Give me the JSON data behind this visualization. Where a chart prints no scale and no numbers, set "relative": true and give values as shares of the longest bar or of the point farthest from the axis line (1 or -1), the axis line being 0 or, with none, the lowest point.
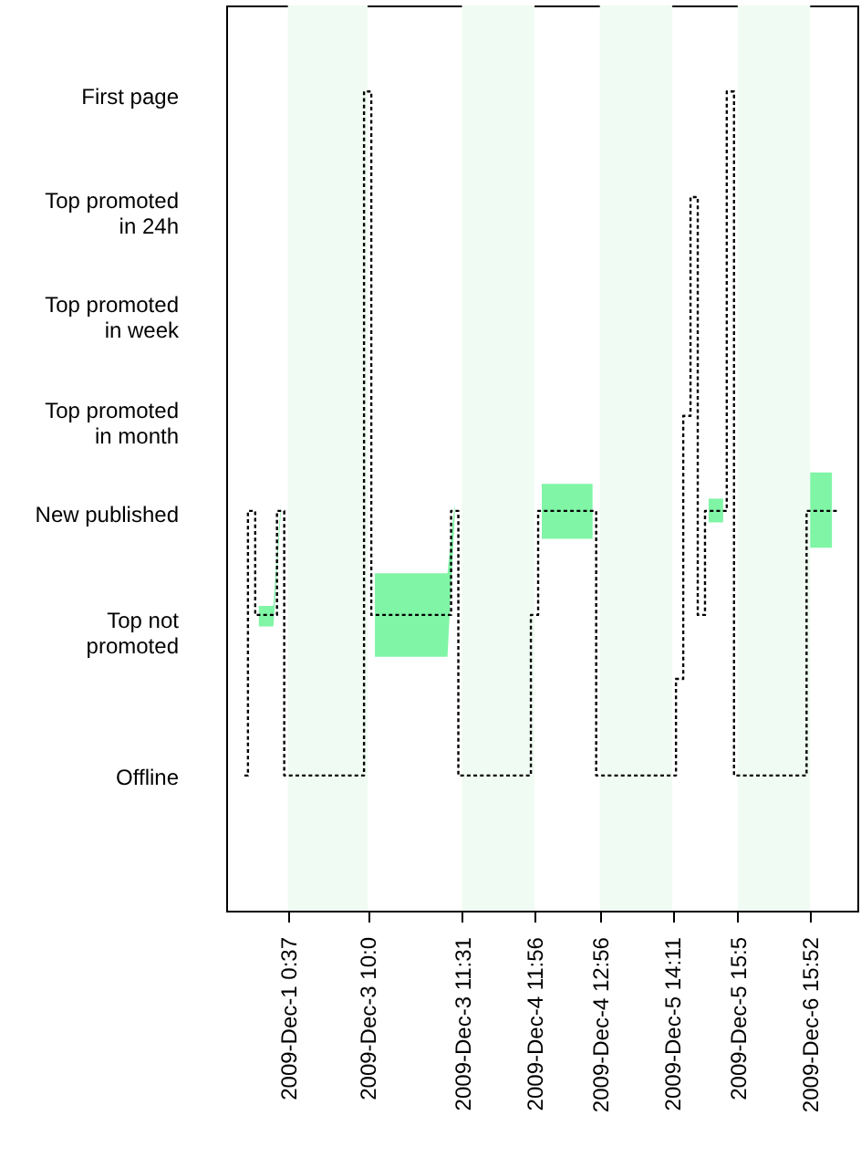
{
  "chart_data": {
    "type": "step",
    "line_style": "dotted",
    "relative": true,
    "categories": [
      null,
      null,
      null,
      null,
      null,
      null,
      null,
      null,
      "2009-Dec-1  0:37",
      null,
      null,
      null,
      null,
      null,
      null,
      null,
      null,
      null,
      null,
      "2009-Dec-3 10:0",
      null,
      null,
      null,
      null,
      null,
      null,
      null,
      null,
      null,
      null,
      null,
      null,
      "2009-Dec-3 11:31",
      null,
      null,
      null,
      null,
      null,
      null,
      null,
      null,
      null,
      "2009-Dec-4 11:56",
      null,
      null,
      null,
      null,
      null,
      null,
      null,
      null,
      "2009-Dec-4 12:56",
      null,
      null,
      null,
      null,
      null,
      null,
      null,
      null,
      null,
      "2009-Dec-5 14:11",
      null,
      null,
      null,
      null,
      null,
      null,
      null,
      null,
      "2009-Dec-5 15:5",
      null,
      null,
      null,
      null,
      null,
      null,
      null,
      null,
      null,
      "2009-Dec-6 15:52",
      null,
      null,
      null,
      null,
      null,
      null
    ],
    "series": [
      {
        "color": "#000000",
        "values": [
          null,
          null,
          0.165,
          0.488,
          0.361,
          0.361,
          0.361,
          0.488,
          0.165,
          0.165,
          0.165,
          0.165,
          0.165,
          0.165,
          0.165,
          0.165,
          0.165,
          0.165,
          0.165,
          1,
          0.361,
          0.361,
          0.361,
          0.361,
          0.361,
          0.361,
          0.361,
          0.361,
          0.361,
          0.361,
          0.361,
          0.488,
          0.165,
          0.165,
          0.165,
          0.165,
          0.165,
          0.165,
          0.165,
          0.165,
          0.165,
          0.165,
          0.361,
          0.488,
          0.488,
          0.488,
          0.488,
          0.488,
          0.488,
          0.488,
          0.488,
          0.165,
          0.165,
          0.165,
          0.165,
          0.165,
          0.165,
          0.165,
          0.165,
          0.165,
          0.165,
          0.165,
          0.283,
          0.604,
          0.871,
          0.361,
          0.488,
          0.488,
          0.488,
          1,
          0.165,
          0.165,
          0.165,
          0.165,
          0.165,
          0.165,
          0.165,
          0.165,
          0.165,
          0.165,
          0.488,
          0.488,
          0.488,
          0.488,
          0.488,
          null,
          null
        ],
        "lower": [
          null,
          null,
          null,
          null,
          0.347,
          0.347,
          0.347,
          0.483,
          null,
          null,
          null,
          null,
          null,
          null,
          null,
          null,
          null,
          null,
          null,
          null,
          0.31,
          0.31,
          0.31,
          0.31,
          0.31,
          0.31,
          0.31,
          0.31,
          0.31,
          0.31,
          0.31,
          0.481,
          null,
          null,
          null,
          null,
          null,
          null,
          null,
          null,
          null,
          null,
          null,
          0.454,
          0.454,
          0.454,
          0.454,
          0.454,
          0.454,
          0.454,
          0.454,
          null,
          null,
          null,
          null,
          null,
          null,
          null,
          null,
          null,
          null,
          null,
          null,
          null,
          null,
          null,
          0.474,
          0.474,
          0.474,
          null,
          null,
          null,
          null,
          null,
          null,
          null,
          null,
          null,
          null,
          null,
          0.443,
          0.443,
          0.443,
          0.443,
          null,
          null,
          null
        ],
        "upper": [
          null,
          null,
          null,
          null,
          0.372,
          0.372,
          0.372,
          0.494,
          null,
          null,
          null,
          null,
          null,
          null,
          null,
          null,
          null,
          null,
          null,
          null,
          0.412,
          0.412,
          0.412,
          0.412,
          0.412,
          0.412,
          0.412,
          0.412,
          0.412,
          0.412,
          0.412,
          0.497,
          null,
          null,
          null,
          null,
          null,
          null,
          null,
          null,
          null,
          null,
          null,
          0.521,
          0.521,
          0.521,
          0.521,
          0.521,
          0.521,
          0.521,
          0.521,
          null,
          null,
          null,
          null,
          null,
          null,
          null,
          null,
          null,
          null,
          null,
          null,
          null,
          null,
          null,
          0.503,
          0.503,
          0.503,
          null,
          null,
          null,
          null,
          null,
          null,
          null,
          null,
          null,
          null,
          null,
          0.535,
          0.535,
          0.535,
          0.535,
          null,
          null,
          null
        ]
      }
    ],
    "annotations": [
      "First page",
      "Top promoted\nin 24h",
      "Top promoted\nin week",
      "Top promoted\nin month",
      "New published",
      "Top not\npromoted",
      "Offline"
    ],
    "bands": [
      {
        "axis": "x",
        "from": "2009-Dec-1  0:37",
        "to": "2009-Dec-3 10:0",
        "color": "#f0fbf3"
      },
      {
        "axis": "x",
        "from": "2009-Dec-3 11:31",
        "to": "2009-Dec-4 11:56",
        "color": "#f0fbf3"
      },
      {
        "axis": "x",
        "from": "2009-Dec-4 12:56",
        "to": "2009-Dec-5 14:11",
        "color": "#f0fbf3"
      },
      {
        "axis": "x",
        "from": "2009-Dec-5 15:5",
        "to": "2009-Dec-6 15:52",
        "color": "#f0fbf3"
      }
    ]
  }
}
